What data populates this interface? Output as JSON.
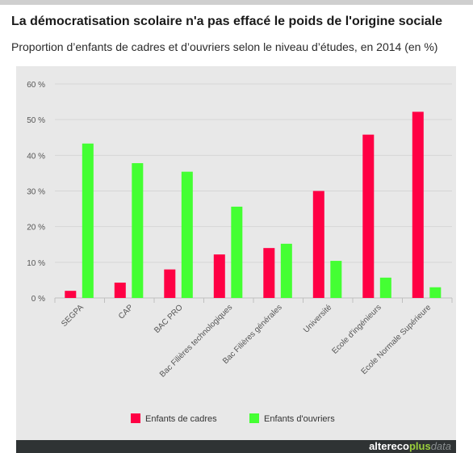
{
  "header": {
    "title": "La démocratisation scolaire n'a pas effacé le poids de l'origine sociale",
    "subtitle": "Proportion d’enfants de cadres et d’ouvriers selon le niveau d’études, en 2014 (en %)"
  },
  "footer": {
    "brand_part1": "altereco",
    "brand_part2": "plus",
    "brand_part3": "data"
  },
  "colors": {
    "cadres": "#ff0044",
    "ouvriers": "#44ff33",
    "grid": "#d6d6d6",
    "axis_text": "#555555"
  },
  "chart_data": {
    "type": "bar",
    "categories": [
      "SEGPA",
      "CAP",
      "BAC PRO",
      "Bac Filières technologiques",
      "Bac Filières générales",
      "Université",
      "Ecole d'ingénieurs",
      "Ecole Normale Supérieure"
    ],
    "series": [
      {
        "name": "Enfants de cadres",
        "values": [
          2,
          4.3,
          8,
          12.2,
          14,
          30,
          45.8,
          52.2
        ]
      },
      {
        "name": "Enfants d'ouvriers",
        "values": [
          43.3,
          37.8,
          35.4,
          25.6,
          15.2,
          10.4,
          5.7,
          3
        ]
      }
    ],
    "ylim": [
      0,
      60
    ],
    "yticks": [
      "0 %",
      "10 %",
      "20 %",
      "30 %",
      "40 %",
      "50 %",
      "60 %"
    ],
    "grid": true,
    "legend_position": "bottom"
  }
}
